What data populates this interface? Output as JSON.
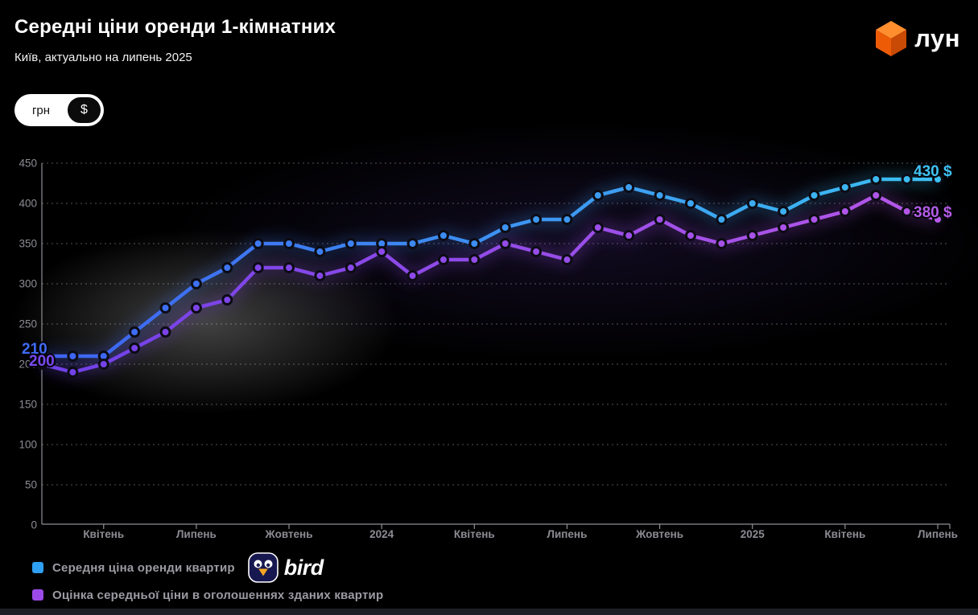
{
  "page": {
    "bg": "#000000",
    "footer_bar_color": "#1e1e26"
  },
  "header": {
    "title": "Середні ціни оренди 1-кімнатних",
    "subtitle": "Київ, актуально на липень 2025",
    "logo_text": "лун",
    "currency_toggle": {
      "options": [
        "грн",
        "$"
      ],
      "selected": "$"
    }
  },
  "chart_data": {
    "type": "line",
    "title": "Середні ціни оренди 1-кімнатних",
    "xlabel": "",
    "ylabel": "",
    "ylim": [
      0,
      450
    ],
    "ytick_step": 50,
    "grid": "horizontal-dotted",
    "points_period": "monthly, Feb 2023 – Jul 2025",
    "x_tick_labels": [
      {
        "label": "Квітень",
        "i": 2
      },
      {
        "label": "Липень",
        "i": 5
      },
      {
        "label": "Жовтень",
        "i": 8
      },
      {
        "label": "2024",
        "i": 11
      },
      {
        "label": "Квітень",
        "i": 14
      },
      {
        "label": "Липень",
        "i": 17
      },
      {
        "label": "Жовтень",
        "i": 20
      },
      {
        "label": "2025",
        "i": 23
      },
      {
        "label": "Квітень",
        "i": 26
      },
      {
        "label": "Липень",
        "i": 29
      }
    ],
    "series": [
      {
        "name": "Середня ціна оренди квартир",
        "color_left": "#3E62F2",
        "color_right": "#3CC0F2",
        "values": [
          210,
          210,
          210,
          240,
          270,
          300,
          320,
          350,
          350,
          340,
          350,
          350,
          350,
          360,
          350,
          370,
          380,
          380,
          410,
          420,
          410,
          400,
          380,
          400,
          390,
          410,
          420,
          430,
          430,
          430
        ]
      },
      {
        "name": "Оцінка середньої ціни в оголошеннях зданих квартир",
        "color_left": "#7040E8",
        "color_right": "#B657E8",
        "values": [
          200,
          190,
          200,
          220,
          240,
          270,
          280,
          320,
          320,
          310,
          320,
          340,
          310,
          330,
          330,
          350,
          340,
          330,
          370,
          360,
          380,
          360,
          350,
          360,
          370,
          380,
          390,
          410,
          390,
          380
        ]
      }
    ],
    "point_labels": [
      {
        "text": "210",
        "x": 27,
        "y": 440,
        "color": "#3E6AF5",
        "size": 19
      },
      {
        "text": "200",
        "x": 36,
        "y": 455,
        "color": "#7A49F0",
        "size": 19
      },
      {
        "text": "430 $",
        "x": 1135,
        "y": 219,
        "color": "#3FC2F2",
        "size": 19
      },
      {
        "text": "380 $",
        "x": 1135,
        "y": 270,
        "color": "#B55CE8",
        "size": 19
      }
    ],
    "axis_color": "#8f8f96",
    "tick_label_color": "#8c8c94"
  },
  "legend": {
    "items": [
      {
        "label": "Середня ціна оренди квартир",
        "color": "#2F9FF2"
      },
      {
        "label": "Оцінка середньої ціни в оголошеннях зданих квартир",
        "color": "#9C4AE8"
      }
    ],
    "brand_text": "bird"
  }
}
